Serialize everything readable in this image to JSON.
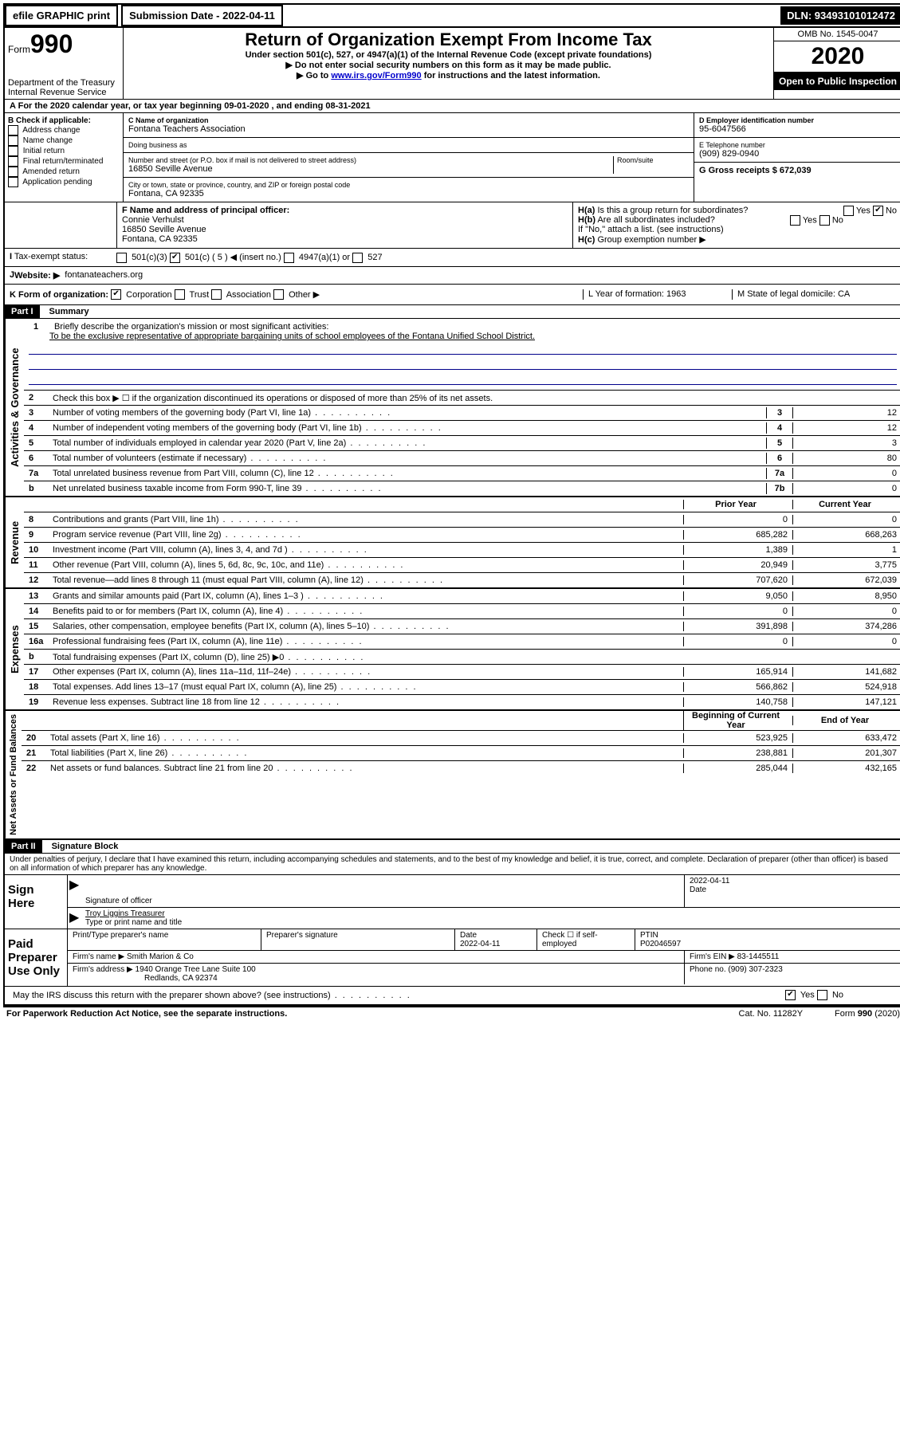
{
  "topbar": {
    "efile": "efile GRAPHIC print",
    "subdate_label": "Submission Date - 2022-04-11",
    "dln": "DLN: 93493101012472"
  },
  "header": {
    "form_word": "Form",
    "form_num": "990",
    "dept": "Department of the Treasury\nInternal Revenue Service",
    "title": "Return of Organization Exempt From Income Tax",
    "subtitle": "Under section 501(c), 527, or 4947(a)(1) of the Internal Revenue Code (except private foundations)",
    "note1": "Do not enter social security numbers on this form as it may be made public.",
    "note2_pre": "Go to ",
    "note2_link": "www.irs.gov/Form990",
    "note2_post": " for instructions and the latest information.",
    "omb": "OMB No. 1545-0047",
    "year": "2020",
    "inspect": "Open to Public Inspection"
  },
  "lineA": "For the 2020 calendar year, or tax year beginning 09-01-2020   , and ending 08-31-2021",
  "boxB": {
    "label": "B Check if applicable:",
    "items": [
      "Address change",
      "Name change",
      "Initial return",
      "Final return/terminated",
      "Amended return",
      "Application pending"
    ]
  },
  "boxC": {
    "label": "C Name of organization",
    "name": "Fontana Teachers Association",
    "dba_label": "Doing business as",
    "addr_label": "Number and street (or P.O. box if mail is not delivered to street address)",
    "room_label": "Room/suite",
    "street": "16850 Seville Avenue",
    "city_label": "City or town, state or province, country, and ZIP or foreign postal code",
    "city": "Fontana, CA  92335"
  },
  "boxD": {
    "label": "D Employer identification number",
    "ein": "95-6047566"
  },
  "boxE": {
    "label": "E Telephone number",
    "phone": "(909) 829-0940"
  },
  "boxG": {
    "label": "G Gross receipts $ 672,039"
  },
  "boxF": {
    "label": "F  Name and address of principal officer:",
    "name": "Connie Verhulst",
    "addr1": "16850 Seville Avenue",
    "addr2": "Fontana, CA  92335"
  },
  "boxH": {
    "a": "Is this a group return for subordinates?",
    "b": "Are all subordinates included?",
    "note": "If \"No,\" attach a list. (see instructions)",
    "c": "Group exemption number ▶"
  },
  "taxExempt": {
    "label": "Tax-exempt status:",
    "c3": "501(c)(3)",
    "c": "501(c) ( 5 ) ◀ (insert no.)",
    "a1": "4947(a)(1) or",
    "s527": "527"
  },
  "website": {
    "label": "Website: ▶",
    "url": "fontanateachers.org"
  },
  "lineK": {
    "label": "K Form of organization:",
    "opts": [
      "Corporation",
      "Trust",
      "Association",
      "Other ▶"
    ]
  },
  "lineL": {
    "label": "L Year of formation: 1963"
  },
  "lineM": {
    "label": "M State of legal domicile: CA"
  },
  "part1": {
    "label": "Part I",
    "title": "Summary",
    "vert_gov": "Activities & Governance",
    "vert_rev": "Revenue",
    "vert_exp": "Expenses",
    "vert_net": "Net Assets or Fund Balances",
    "l1": "Briefly describe the organization's mission or most significant activities:",
    "mission": "To be the exclusive representative of appropriate bargaining units of school employees of the Fontana Unified School District.",
    "l2": "Check this box ▶ ☐  if the organization discontinued its operations or disposed of more than 25% of its net assets.",
    "lines_gov": [
      {
        "n": "3",
        "t": "Number of voting members of the governing body (Part VI, line 1a)",
        "b": "3",
        "v": "12"
      },
      {
        "n": "4",
        "t": "Number of independent voting members of the governing body (Part VI, line 1b)",
        "b": "4",
        "v": "12"
      },
      {
        "n": "5",
        "t": "Total number of individuals employed in calendar year 2020 (Part V, line 2a)",
        "b": "5",
        "v": "3"
      },
      {
        "n": "6",
        "t": "Total number of volunteers (estimate if necessary)",
        "b": "6",
        "v": "80"
      },
      {
        "n": "7a",
        "t": "Total unrelated business revenue from Part VIII, column (C), line 12",
        "b": "7a",
        "v": "0"
      },
      {
        "n": "b",
        "t": "Net unrelated business taxable income from Form 990-T, line 39",
        "b": "7b",
        "v": "0"
      }
    ],
    "col_prior": "Prior Year",
    "col_current": "Current Year",
    "lines_rev": [
      {
        "n": "8",
        "t": "Contributions and grants (Part VIII, line 1h)",
        "p": "0",
        "c": "0"
      },
      {
        "n": "9",
        "t": "Program service revenue (Part VIII, line 2g)",
        "p": "685,282",
        "c": "668,263"
      },
      {
        "n": "10",
        "t": "Investment income (Part VIII, column (A), lines 3, 4, and 7d )",
        "p": "1,389",
        "c": "1"
      },
      {
        "n": "11",
        "t": "Other revenue (Part VIII, column (A), lines 5, 6d, 8c, 9c, 10c, and 11e)",
        "p": "20,949",
        "c": "3,775"
      },
      {
        "n": "12",
        "t": "Total revenue—add lines 8 through 11 (must equal Part VIII, column (A), line 12)",
        "p": "707,620",
        "c": "672,039"
      }
    ],
    "lines_exp": [
      {
        "n": "13",
        "t": "Grants and similar amounts paid (Part IX, column (A), lines 1–3 )",
        "p": "9,050",
        "c": "8,950"
      },
      {
        "n": "14",
        "t": "Benefits paid to or for members (Part IX, column (A), line 4)",
        "p": "0",
        "c": "0"
      },
      {
        "n": "15",
        "t": "Salaries, other compensation, employee benefits (Part IX, column (A), lines 5–10)",
        "p": "391,898",
        "c": "374,286"
      },
      {
        "n": "16a",
        "t": "Professional fundraising fees (Part IX, column (A), line 11e)",
        "p": "0",
        "c": "0"
      },
      {
        "n": "b",
        "t": "Total fundraising expenses (Part IX, column (D), line 25) ▶0",
        "p": "",
        "c": "",
        "grey": true
      },
      {
        "n": "17",
        "t": "Other expenses (Part IX, column (A), lines 11a–11d, 11f–24e)",
        "p": "165,914",
        "c": "141,682"
      },
      {
        "n": "18",
        "t": "Total expenses. Add lines 13–17 (must equal Part IX, column (A), line 25)",
        "p": "566,862",
        "c": "524,918"
      },
      {
        "n": "19",
        "t": "Revenue less expenses. Subtract line 18 from line 12",
        "p": "140,758",
        "c": "147,121"
      }
    ],
    "col_begin": "Beginning of Current Year",
    "col_end": "End of Year",
    "lines_net": [
      {
        "n": "20",
        "t": "Total assets (Part X, line 16)",
        "p": "523,925",
        "c": "633,472"
      },
      {
        "n": "21",
        "t": "Total liabilities (Part X, line 26)",
        "p": "238,881",
        "c": "201,307"
      },
      {
        "n": "22",
        "t": "Net assets or fund balances. Subtract line 21 from line 20",
        "p": "285,044",
        "c": "432,165"
      }
    ]
  },
  "part2": {
    "label": "Part II",
    "title": "Signature Block",
    "penalty": "Under penalties of perjury, I declare that I have examined this return, including accompanying schedules and statements, and to the best of my knowledge and belief, it is true, correct, and complete. Declaration of preparer (other than officer) is based on all information of which preparer has any knowledge.",
    "sign_here": "Sign Here",
    "sig_officer": "Signature of officer",
    "sig_date": "2022-04-11",
    "date_label": "Date",
    "officer_name": "Troy Liggins  Treasurer",
    "type_label": "Type or print name and title",
    "paid": "Paid Preparer Use Only",
    "prep_name_label": "Print/Type preparer's name",
    "prep_sig_label": "Preparer's signature",
    "prep_date_label": "Date",
    "prep_date": "2022-04-11",
    "check_self": "Check ☐ if self-employed",
    "ptin_label": "PTIN",
    "ptin": "P02046597",
    "firm_name_label": "Firm's name    ▶",
    "firm_name": "Smith Marion & Co",
    "firm_ein_label": "Firm's EIN ▶",
    "firm_ein": "83-1445511",
    "firm_addr_label": "Firm's address ▶",
    "firm_addr1": "1940 Orange Tree Lane Suite 100",
    "firm_addr2": "Redlands, CA  92374",
    "firm_phone_label": "Phone no.",
    "firm_phone": "(909) 307-2323",
    "discuss": "May the IRS discuss this return with the preparer shown above? (see instructions)",
    "yes": "Yes",
    "no": "No"
  },
  "footer": {
    "pra": "For Paperwork Reduction Act Notice, see the separate instructions.",
    "cat": "Cat. No. 11282Y",
    "form": "Form 990 (2020)"
  }
}
